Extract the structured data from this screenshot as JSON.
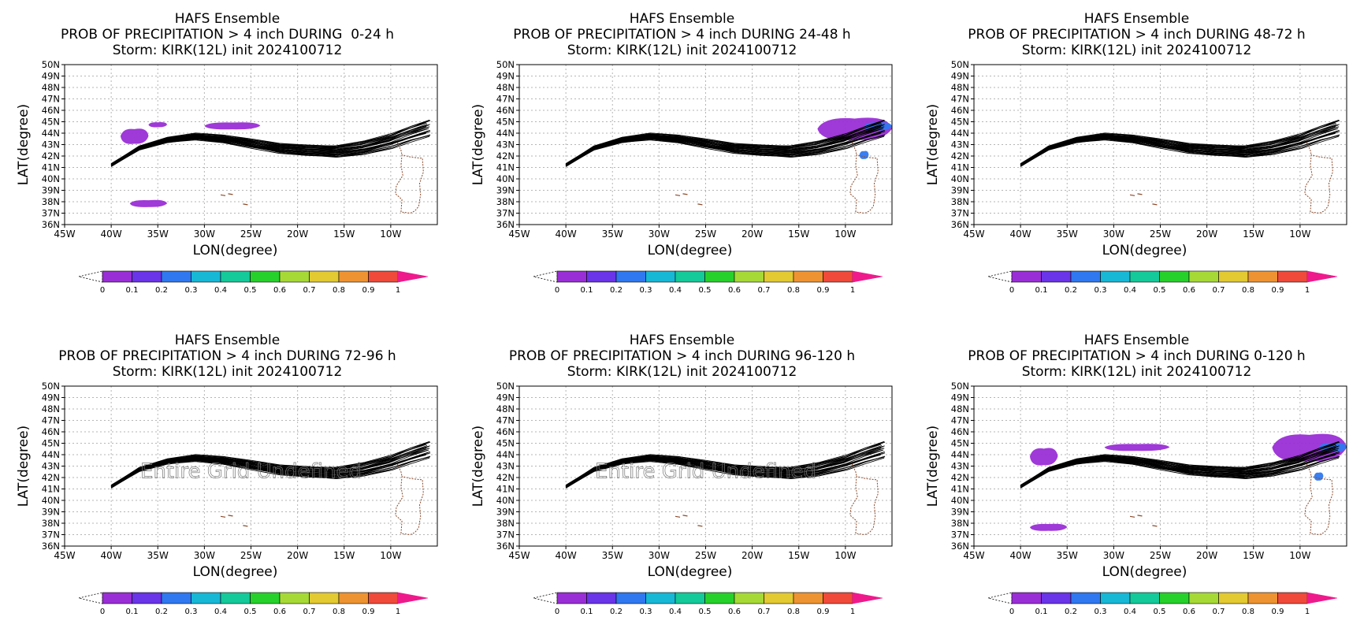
{
  "layout": {
    "columns": 3,
    "rows": 2
  },
  "map": {
    "lon_range": [
      -45,
      -5
    ],
    "lat_range": [
      36,
      50
    ],
    "lon_ticks": [
      -45,
      -40,
      -35,
      -30,
      -25,
      -20,
      -15,
      -10
    ],
    "lon_tick_labels": [
      "45W",
      "40W",
      "35W",
      "30W",
      "25W",
      "20W",
      "15W",
      "10W"
    ],
    "lat_ticks": [
      36,
      37,
      38,
      39,
      40,
      41,
      42,
      43,
      44,
      45,
      46,
      47,
      48,
      49,
      50
    ],
    "lat_tick_labels": [
      "36N",
      "37N",
      "38N",
      "39N",
      "40N",
      "41N",
      "42N",
      "43N",
      "44N",
      "45N",
      "46N",
      "47N",
      "48N",
      "49N",
      "50N"
    ],
    "xlabel": "LON(degree)",
    "ylabel": "LAT(degree)",
    "gridlines": true,
    "track_color": "#000000",
    "coast_color": "#8b4a2b",
    "track_centerline": [
      [
        -40,
        41.2
      ],
      [
        -37,
        42.7
      ],
      [
        -34,
        43.4
      ],
      [
        -31,
        43.7
      ],
      [
        -28,
        43.5
      ],
      [
        -25,
        43.1
      ],
      [
        -22,
        42.7
      ],
      [
        -19,
        42.5
      ],
      [
        -16,
        42.4
      ],
      [
        -13,
        42.7
      ],
      [
        -10,
        43.3
      ],
      [
        -8,
        43.9
      ],
      [
        -6,
        44.4
      ]
    ],
    "portugal_coast": [
      [
        -8.8,
        42.1
      ],
      [
        -8.9,
        41.2
      ],
      [
        -8.7,
        40.3
      ],
      [
        -9.4,
        39.4
      ],
      [
        -9.5,
        38.7
      ],
      [
        -8.8,
        38.2
      ],
      [
        -8.9,
        37.1
      ],
      [
        -7.9,
        37.0
      ],
      [
        -7.4,
        37.2
      ],
      [
        -7.0,
        37.6
      ],
      [
        -6.8,
        38.6
      ],
      [
        -6.9,
        39.6
      ],
      [
        -6.5,
        40.6
      ],
      [
        -6.6,
        41.8
      ],
      [
        -7.8,
        41.9
      ],
      [
        -8.8,
        42.1
      ]
    ],
    "spain_north_coast": [
      [
        -9.3,
        43.2
      ],
      [
        -8.9,
        42.5
      ],
      [
        -8.8,
        42.1
      ]
    ],
    "azores_islands": [
      [
        -28.0,
        38.6
      ],
      [
        -27.2,
        38.7
      ],
      [
        -25.6,
        37.8
      ]
    ]
  },
  "colorbar": {
    "ticks": [
      "0",
      "0.1",
      "0.2",
      "0.3",
      "0.4",
      "0.5",
      "0.6",
      "0.7",
      "0.8",
      "0.9",
      "1"
    ],
    "colors": [
      "#9a2ed6",
      "#6a34e8",
      "#2f78f0",
      "#17b8d6",
      "#14c99a",
      "#27d12b",
      "#a6d936",
      "#e3c932",
      "#ee9331",
      "#ef4a3a"
    ],
    "over_color": "#ee1a8c",
    "under_color": "#ffffff"
  },
  "panels": [
    {
      "title_line1": "HAFS Ensemble",
      "title_line2": "PROB OF PRECIPITATION > 4 inch DURING  0-24 h",
      "title_line3": "Storm: KIRK(12L) init 2024100712",
      "overlay_text": "",
      "precip": [
        {
          "lon": [
            -39,
            -36
          ],
          "lat": [
            43.0,
            44.5
          ],
          "prob": 0.05
        },
        {
          "lon": [
            -36,
            -34
          ],
          "lat": [
            44.5,
            45.0
          ],
          "prob": 0.05
        },
        {
          "lon": [
            -30,
            -24
          ],
          "lat": [
            44.3,
            45.0
          ],
          "prob": 0.05
        },
        {
          "lon": [
            -38,
            -34
          ],
          "lat": [
            37.5,
            38.2
          ],
          "prob": 0.05
        }
      ]
    },
    {
      "title_line1": "HAFS Ensemble",
      "title_line2": "PROB OF PRECIPITATION > 4 inch DURING 24-48 h",
      "title_line3": "Storm: KIRK(12L) init 2024100712",
      "overlay_text": "",
      "precip": [
        {
          "lon": [
            -13,
            -5
          ],
          "lat": [
            43.3,
            45.5
          ],
          "prob": 0.05
        },
        {
          "lon": [
            -8,
            -5
          ],
          "lat": [
            44.2,
            45.0
          ],
          "prob": 0.25
        },
        {
          "lon": [
            -8.5,
            -7.5
          ],
          "lat": [
            41.7,
            42.5
          ],
          "prob": 0.25
        }
      ]
    },
    {
      "title_line1": "HAFS Ensemble",
      "title_line2": "PROB OF PRECIPITATION > 4 inch DURING 48-72 h",
      "title_line3": "Storm: KIRK(12L) init 2024100712",
      "overlay_text": "",
      "precip": []
    },
    {
      "title_line1": "HAFS Ensemble",
      "title_line2": "PROB OF PRECIPITATION > 4 inch DURING 72-96 h",
      "title_line3": "Storm: KIRK(12L) init 2024100712",
      "overlay_text": "Entire Grid Undefined",
      "precip": []
    },
    {
      "title_line1": "HAFS Ensemble",
      "title_line2": "PROB OF PRECIPITATION > 4 inch DURING 96-120 h",
      "title_line3": "Storm: KIRK(12L) init 2024100712",
      "overlay_text": "Entire Grid Undefined",
      "precip": []
    },
    {
      "title_line1": "HAFS Ensemble",
      "title_line2": "PROB OF PRECIPITATION > 4 inch DURING 0-120 h",
      "title_line3": "Storm: KIRK(12L) init 2024100712",
      "overlay_text": "",
      "precip": [
        {
          "lon": [
            -39,
            -36
          ],
          "lat": [
            43.0,
            44.7
          ],
          "prob": 0.05
        },
        {
          "lon": [
            -31,
            -24
          ],
          "lat": [
            44.3,
            45.0
          ],
          "prob": 0.05
        },
        {
          "lon": [
            -13,
            -5
          ],
          "lat": [
            43.3,
            46.0
          ],
          "prob": 0.05
        },
        {
          "lon": [
            -8,
            -5
          ],
          "lat": [
            44.2,
            45.1
          ],
          "prob": 0.25
        },
        {
          "lon": [
            -8.5,
            -7.5
          ],
          "lat": [
            41.7,
            42.5
          ],
          "prob": 0.25
        },
        {
          "lon": [
            -39,
            -35
          ],
          "lat": [
            37.3,
            38.0
          ],
          "prob": 0.05
        }
      ]
    }
  ]
}
